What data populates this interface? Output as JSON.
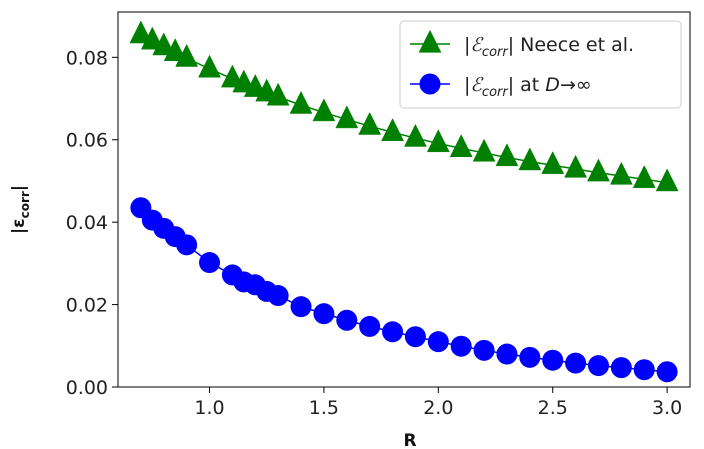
{
  "chart_data": {
    "type": "line",
    "title": "",
    "xlabel": "R",
    "ylabel": "|ε_corr|",
    "xlim": [
      0.6,
      3.1
    ],
    "ylim": [
      0.0,
      0.091
    ],
    "x_ticks": [
      "1.0",
      "1.5",
      "2.0",
      "2.5",
      "3.0"
    ],
    "y_ticks": [
      "0.00",
      "0.02",
      "0.04",
      "0.06",
      "0.08"
    ],
    "grid": false,
    "legend_position": "upper-right",
    "series": [
      {
        "name": "|ℰcorr| Neece et al.",
        "legend_parts": {
          "pre": "|",
          "script": "ℰ",
          "sub": "corr",
          "post": "| Neece et al."
        },
        "marker": "triangle",
        "color": "#008000",
        "x": [
          0.7,
          0.75,
          0.8,
          0.85,
          0.9,
          1.0,
          1.1,
          1.15,
          1.2,
          1.25,
          1.3,
          1.4,
          1.5,
          1.6,
          1.7,
          1.8,
          1.9,
          2.0,
          2.1,
          2.2,
          2.3,
          2.4,
          2.5,
          2.6,
          2.7,
          2.8,
          2.9,
          3.0
        ],
        "y": [
          0.0855,
          0.084,
          0.0826,
          0.0812,
          0.0798,
          0.0772,
          0.0748,
          0.0736,
          0.0725,
          0.0714,
          0.0704,
          0.0684,
          0.0666,
          0.0649,
          0.0633,
          0.0618,
          0.0604,
          0.0591,
          0.0579,
          0.0568,
          0.0557,
          0.0547,
          0.0538,
          0.0529,
          0.052,
          0.0512,
          0.0504,
          0.0496
        ]
      },
      {
        "name": "|ℰcorr| at D→∞",
        "legend_parts": {
          "pre": "|",
          "script": "ℰ",
          "sub": "corr",
          "mid": "| at ",
          "italic": "D",
          "post": "→∞"
        },
        "marker": "circle",
        "color": "#0000ff",
        "x": [
          0.7,
          0.75,
          0.8,
          0.85,
          0.9,
          1.0,
          1.1,
          1.15,
          1.2,
          1.25,
          1.3,
          1.4,
          1.5,
          1.6,
          1.7,
          1.8,
          1.9,
          2.0,
          2.1,
          2.2,
          2.3,
          2.4,
          2.5,
          2.6,
          2.7,
          2.8,
          2.9,
          3.0
        ],
        "y": [
          0.0435,
          0.0405,
          0.0385,
          0.0365,
          0.0345,
          0.0302,
          0.0272,
          0.0255,
          0.0248,
          0.0232,
          0.0222,
          0.0195,
          0.0178,
          0.0162,
          0.0147,
          0.0134,
          0.0122,
          0.011,
          0.0099,
          0.0089,
          0.008,
          0.0072,
          0.0065,
          0.0058,
          0.0052,
          0.0047,
          0.0042,
          0.0037
        ]
      }
    ]
  }
}
